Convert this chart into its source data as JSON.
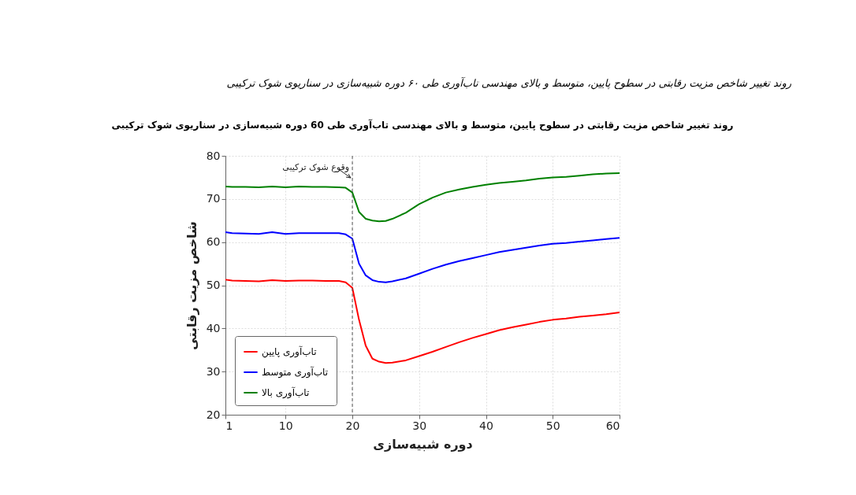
{
  "chart_data": {
    "type": "line",
    "title": "روند تغییر شاخص مزیت رقابتی در سطوح پایین، متوسط و بالای مهندسی تاب‌آوری طی 60 دوره شبیه‌سازی در سناریوی شوک ترکیبی",
    "xlabel": "دوره شبیه‌سازی",
    "ylabel": "شاخص مزیت رقابتی",
    "annotations": [
      "روند تغییر شاخص مزیت رقابتی در سطوح پایین، متوسط و بالای مهندسی تاب‌آوری طی ۶۰ دوره شبیه‌سازی در سناریوی شوک ترکیبی"
    ],
    "x": [
      1,
      2,
      4,
      6,
      8,
      10,
      12,
      14,
      16,
      18,
      19,
      20,
      21,
      22,
      23,
      24,
      25,
      26,
      28,
      30,
      32,
      34,
      36,
      38,
      40,
      42,
      44,
      46,
      48,
      50,
      52,
      54,
      56,
      58,
      60
    ],
    "series": [
      {
        "name": "تاب‌آوری پایین",
        "color": "#ff0000",
        "values": [
          51.3,
          51.1,
          51.0,
          50.9,
          51.2,
          51.0,
          51.1,
          51.1,
          51.0,
          51.0,
          50.7,
          49.4,
          42,
          36,
          33,
          32.3,
          32.0,
          32.1,
          32.6,
          33.6,
          34.6,
          35.7,
          36.8,
          37.8,
          38.7,
          39.6,
          40.3,
          40.9,
          41.5,
          42.0,
          42.3,
          42.7,
          43.0,
          43.3,
          43.7
        ]
      },
      {
        "name": "تاب‌آوری متوسط",
        "color": "#0000ff",
        "values": [
          62.3,
          62.1,
          62.0,
          61.9,
          62.3,
          61.9,
          62.1,
          62.1,
          62.1,
          62.1,
          61.8,
          60.8,
          55,
          52.3,
          51.2,
          50.8,
          50.7,
          50.9,
          51.6,
          52.7,
          53.8,
          54.8,
          55.6,
          56.3,
          57.0,
          57.7,
          58.2,
          58.7,
          59.2,
          59.6,
          59.8,
          60.1,
          60.4,
          60.7,
          61.0
        ]
      },
      {
        "name": "تاب‌آوری بالا",
        "color": "#008000",
        "values": [
          72.9,
          72.8,
          72.8,
          72.7,
          72.9,
          72.7,
          72.9,
          72.8,
          72.8,
          72.7,
          72.6,
          71.5,
          67,
          65.4,
          65.0,
          64.8,
          64.9,
          65.4,
          66.8,
          68.8,
          70.3,
          71.5,
          72.2,
          72.8,
          73.3,
          73.7,
          74.0,
          74.3,
          74.7,
          75.0,
          75.1,
          75.4,
          75.7,
          75.9,
          76.0
        ]
      }
    ],
    "xlim": [
      1,
      60
    ],
    "xticks": [
      1,
      10,
      20,
      30,
      40,
      50,
      60
    ],
    "ylim": [
      20,
      80
    ],
    "yticks": [
      20,
      30,
      40,
      50,
      60,
      70,
      80
    ],
    "ref_lines": [
      {
        "axis": "x",
        "value": 20,
        "label": "وقوع شوک ترکیبی",
        "color": "#555555",
        "line_style": "dashed"
      }
    ],
    "grid": true,
    "legend": "bottom left",
    "marker": "none",
    "line_style": "solid"
  }
}
